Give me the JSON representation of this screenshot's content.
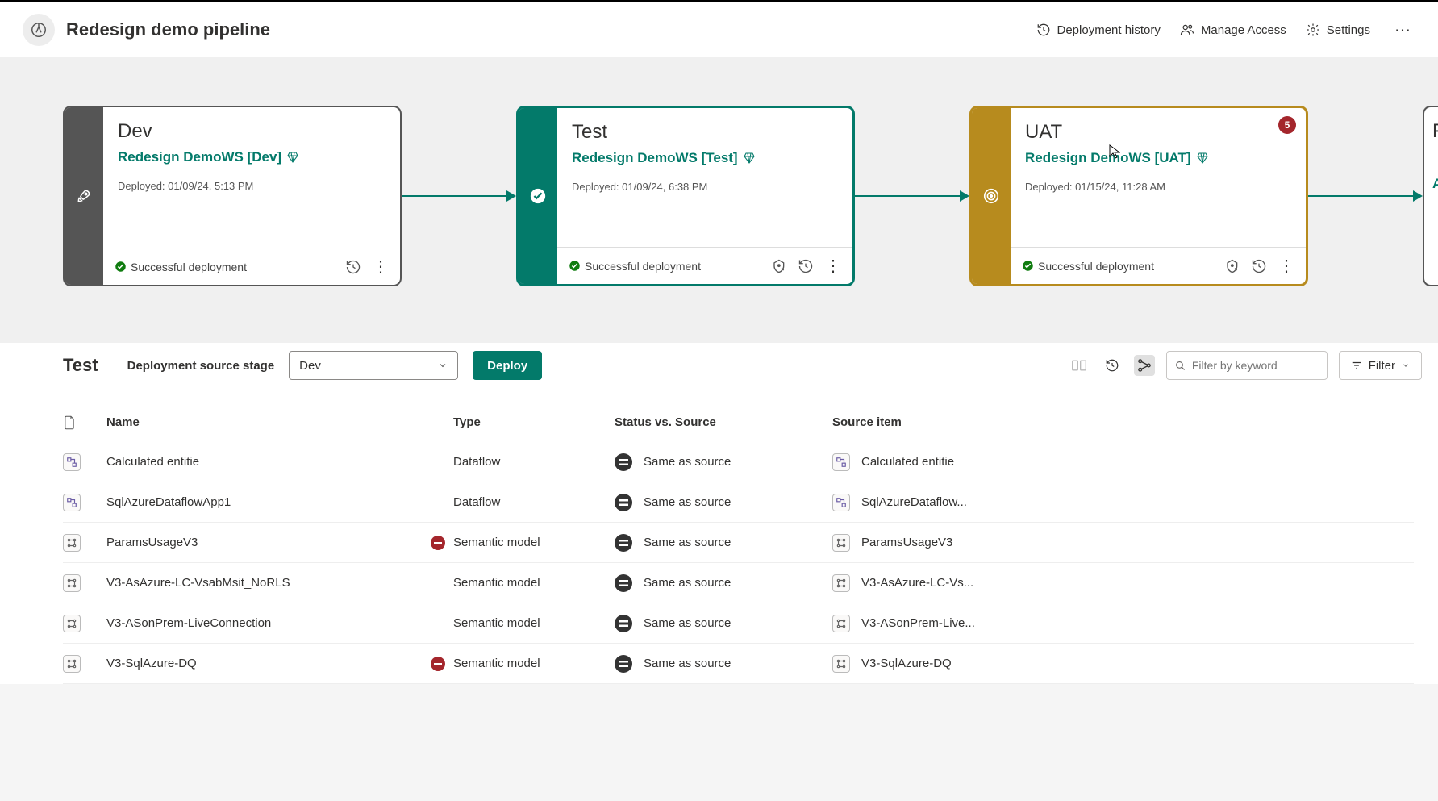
{
  "header": {
    "title": "Redesign demo pipeline",
    "actions": {
      "history": "Deployment history",
      "access": "Manage Access",
      "settings": "Settings"
    }
  },
  "stages": [
    {
      "name": "Dev",
      "workspace": "Redesign DemoWS [Dev]",
      "deployed": "Deployed: 01/09/24, 5:13 PM",
      "status": "Successful deployment",
      "color_class": "dev",
      "sidebar_color": "#555555",
      "border_color": "#555555",
      "show_gear": false,
      "badge": null
    },
    {
      "name": "Test",
      "workspace": "Redesign DemoWS [Test]",
      "deployed": "Deployed: 01/09/24, 6:38 PM",
      "status": "Successful deployment",
      "color_class": "test",
      "sidebar_color": "#037a6a",
      "border_color": "#037a6a",
      "show_gear": true,
      "badge": null
    },
    {
      "name": "UAT",
      "workspace": "Redesign DemoWS [UAT]",
      "deployed": "Deployed: 01/15/24, 11:28 AM",
      "status": "Successful deployment",
      "color_class": "uat",
      "sidebar_color": "#b78b1e",
      "border_color": "#b78b1e",
      "show_gear": true,
      "badge": "5"
    }
  ],
  "lower": {
    "stage_title": "Test",
    "source_label": "Deployment source stage",
    "source_value": "Dev",
    "deploy_label": "Deploy",
    "filter_placeholder": "Filter by keyword",
    "filter_btn": "Filter"
  },
  "table": {
    "columns": {
      "name": "Name",
      "type": "Type",
      "status": "Status vs. Source",
      "source": "Source item"
    },
    "rows": [
      {
        "icon": "dataflow",
        "name": "Calculated entitie",
        "warn": false,
        "type": "Dataflow",
        "status": "Same as source",
        "src_icon": "dataflow",
        "src": "Calculated entitie"
      },
      {
        "icon": "dataflow",
        "name": "SqlAzureDataflowApp1",
        "warn": false,
        "type": "Dataflow",
        "status": "Same as source",
        "src_icon": "dataflow",
        "src": "SqlAzureDataflow..."
      },
      {
        "icon": "model",
        "name": "ParamsUsageV3",
        "warn": true,
        "type": "Semantic model",
        "status": "Same as source",
        "src_icon": "model",
        "src": "ParamsUsageV3"
      },
      {
        "icon": "model",
        "name": "V3-AsAzure-LC-VsabMsit_NoRLS",
        "warn": false,
        "type": "Semantic model",
        "status": "Same as source",
        "src_icon": "model",
        "src": "V3-AsAzure-LC-Vs..."
      },
      {
        "icon": "model",
        "name": "V3-ASonPrem-LiveConnection",
        "warn": false,
        "type": "Semantic model",
        "status": "Same as source",
        "src_icon": "model",
        "src": "V3-ASonPrem-Live..."
      },
      {
        "icon": "model",
        "name": "V3-SqlAzure-DQ",
        "warn": true,
        "type": "Semantic model",
        "status": "Same as source",
        "src_icon": "model",
        "src": "V3-SqlAzure-DQ"
      }
    ]
  },
  "colors": {
    "teal": "#037a6a",
    "gold": "#b78b1e",
    "grey": "#555555",
    "red": "#a4262c",
    "success_green": "#107c10"
  }
}
